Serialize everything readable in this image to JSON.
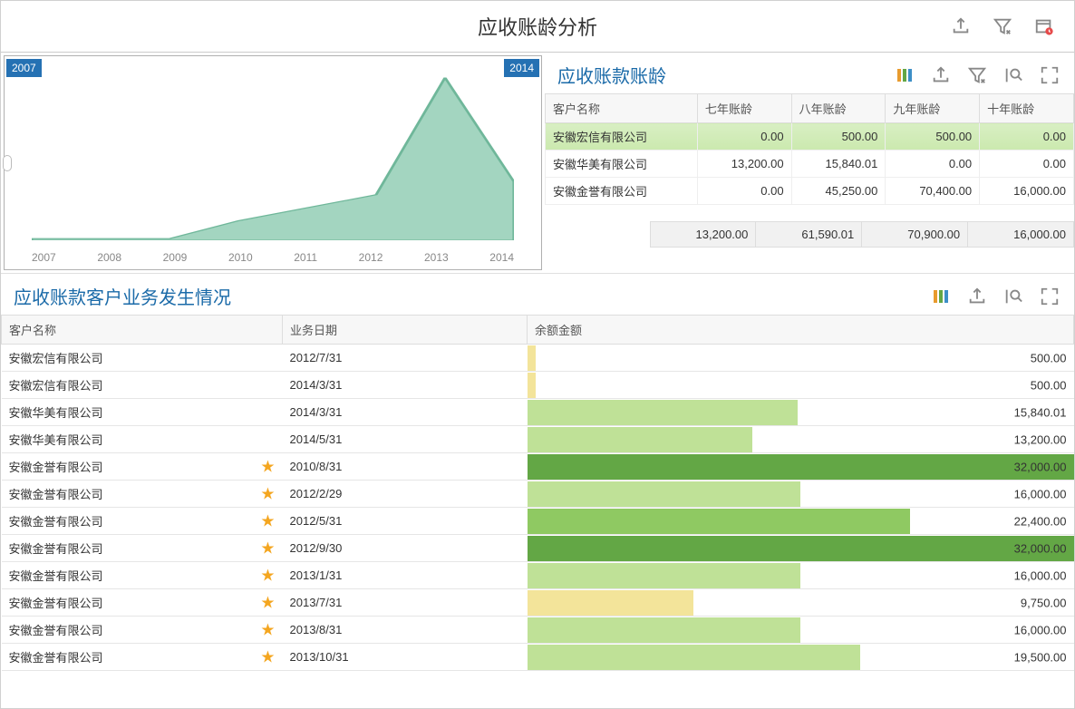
{
  "page": {
    "title": "应收账龄分析"
  },
  "chart": {
    "type": "area",
    "start_badge": "2007",
    "end_badge": "2014",
    "x_labels": [
      "2007",
      "2008",
      "2009",
      "2010",
      "2011",
      "2012",
      "2013",
      "2014"
    ],
    "values": [
      1,
      1,
      1,
      12,
      20,
      28,
      100,
      36
    ],
    "fill_color": "#a3d5c0",
    "stroke_color": "#6fb79a",
    "background": "#ffffff",
    "axis_color": "#888888",
    "border_color": "#b0b0b0"
  },
  "aging": {
    "title": "应收账款账龄",
    "columns": [
      "客户名称",
      "七年账龄",
      "八年账龄",
      "九年账龄",
      "十年账龄"
    ],
    "rows": [
      {
        "name": "安徽宏信有限公司",
        "v": [
          "0.00",
          "500.00",
          "500.00",
          "0.00"
        ],
        "selected": true
      },
      {
        "name": "安徽华美有限公司",
        "v": [
          "13,200.00",
          "15,840.01",
          "0.00",
          "0.00"
        ],
        "selected": false
      },
      {
        "name": "安徽金誉有限公司",
        "v": [
          "0.00",
          "45,250.00",
          "70,400.00",
          "16,000.00"
        ],
        "selected": false
      }
    ],
    "totals": [
      "13,200.00",
      "61,590.01",
      "70,900.00",
      "16,000.00"
    ]
  },
  "detail": {
    "title": "应收账款客户业务发生情况",
    "columns": [
      "客户名称",
      "业务日期",
      "余额金额"
    ],
    "max_value": 32000,
    "bar_colors": {
      "yellow": "#f3e49a",
      "light_green": "#bfe197",
      "mid_green": "#8fc962",
      "dark_green": "#63a745"
    },
    "rows": [
      {
        "cust": "安徽宏信有限公司",
        "date": "2012/7/31",
        "amount": "500.00",
        "raw": 500,
        "color": "yellow",
        "star": false
      },
      {
        "cust": "安徽宏信有限公司",
        "date": "2014/3/31",
        "amount": "500.00",
        "raw": 500,
        "color": "yellow",
        "star": false
      },
      {
        "cust": "安徽华美有限公司",
        "date": "2014/3/31",
        "amount": "15,840.01",
        "raw": 15840,
        "color": "light_green",
        "star": false
      },
      {
        "cust": "安徽华美有限公司",
        "date": "2014/5/31",
        "amount": "13,200.00",
        "raw": 13200,
        "color": "light_green",
        "star": false
      },
      {
        "cust": "安徽金誉有限公司",
        "date": "2010/8/31",
        "amount": "32,000.00",
        "raw": 32000,
        "color": "dark_green",
        "star": true
      },
      {
        "cust": "安徽金誉有限公司",
        "date": "2012/2/29",
        "amount": "16,000.00",
        "raw": 16000,
        "color": "light_green",
        "star": true
      },
      {
        "cust": "安徽金誉有限公司",
        "date": "2012/5/31",
        "amount": "22,400.00",
        "raw": 22400,
        "color": "mid_green",
        "star": true
      },
      {
        "cust": "安徽金誉有限公司",
        "date": "2012/9/30",
        "amount": "32,000.00",
        "raw": 32000,
        "color": "dark_green",
        "star": true
      },
      {
        "cust": "安徽金誉有限公司",
        "date": "2013/1/31",
        "amount": "16,000.00",
        "raw": 16000,
        "color": "light_green",
        "star": true
      },
      {
        "cust": "安徽金誉有限公司",
        "date": "2013/7/31",
        "amount": "9,750.00",
        "raw": 9750,
        "color": "yellow",
        "star": true
      },
      {
        "cust": "安徽金誉有限公司",
        "date": "2013/8/31",
        "amount": "16,000.00",
        "raw": 16000,
        "color": "light_green",
        "star": true
      },
      {
        "cust": "安徽金誉有限公司",
        "date": "2013/10/31",
        "amount": "19,500.00",
        "raw": 19500,
        "color": "light_green",
        "star": true
      }
    ]
  }
}
